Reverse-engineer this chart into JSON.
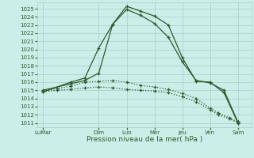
{
  "title": "",
  "xlabel": "Pression niveau de la mer( hPa )",
  "ylabel": "",
  "background_color": "#cceee8",
  "grid_color": "#aacccc",
  "line_color": "#2d5a2d",
  "ylim": [
    1010.5,
    1025.8
  ],
  "yticks": [
    1011,
    1012,
    1013,
    1014,
    1015,
    1016,
    1017,
    1018,
    1019,
    1020,
    1021,
    1022,
    1023,
    1024,
    1025
  ],
  "x_labels": [
    "LuMar",
    "Dim",
    "Lun",
    "Mer",
    "Jeu",
    "Ven",
    "Sam"
  ],
  "x_positions": [
    0,
    2,
    3,
    4,
    5,
    6,
    7
  ],
  "xlim": [
    -0.2,
    7.5
  ],
  "lines": [
    {
      "x": [
        0,
        1.0,
        1.5,
        2.0,
        2.5,
        3.0,
        3.5,
        4.0,
        4.5,
        5.0,
        5.5,
        6.0,
        6.5,
        7.0
      ],
      "y": [
        1014.8,
        1016.0,
        1016.5,
        1020.2,
        1023.1,
        1025.3,
        1024.7,
        1024.1,
        1023.0,
        1019.0,
        1016.1,
        1016.0,
        1014.7,
        1011.0
      ],
      "style": "solid"
    },
    {
      "x": [
        0,
        1.0,
        1.5,
        2.0,
        2.5,
        3.0,
        3.5,
        4.0,
        4.5,
        5.0,
        5.5,
        6.0,
        6.5,
        7.0
      ],
      "y": [
        1015.0,
        1015.8,
        1016.2,
        1017.1,
        1023.1,
        1024.9,
        1024.2,
        1023.2,
        1021.5,
        1018.5,
        1016.2,
        1015.9,
        1015.0,
        1011.1
      ],
      "style": "solid"
    },
    {
      "x": [
        0,
        0.5,
        1.0,
        1.5,
        2.0,
        2.5,
        3.0,
        3.5,
        4.0,
        4.5,
        5.0,
        5.5,
        6.0,
        6.3,
        6.7,
        7.0
      ],
      "y": [
        1014.8,
        1015.0,
        1015.1,
        1015.3,
        1015.4,
        1015.3,
        1015.1,
        1015.0,
        1014.9,
        1014.7,
        1014.2,
        1013.6,
        1012.6,
        1012.0,
        1011.5,
        1011.0
      ],
      "style": "dotted"
    },
    {
      "x": [
        0,
        0.5,
        1.0,
        1.5,
        2.0,
        2.5,
        3.0,
        3.5,
        4.0,
        4.5,
        5.0,
        5.5,
        6.0,
        6.3,
        6.7,
        7.0
      ],
      "y": [
        1014.9,
        1015.2,
        1015.5,
        1016.0,
        1016.1,
        1016.2,
        1016.0,
        1015.6,
        1015.4,
        1015.1,
        1014.6,
        1014.0,
        1012.8,
        1012.2,
        1011.6,
        1011.1
      ],
      "style": "dotted"
    }
  ]
}
